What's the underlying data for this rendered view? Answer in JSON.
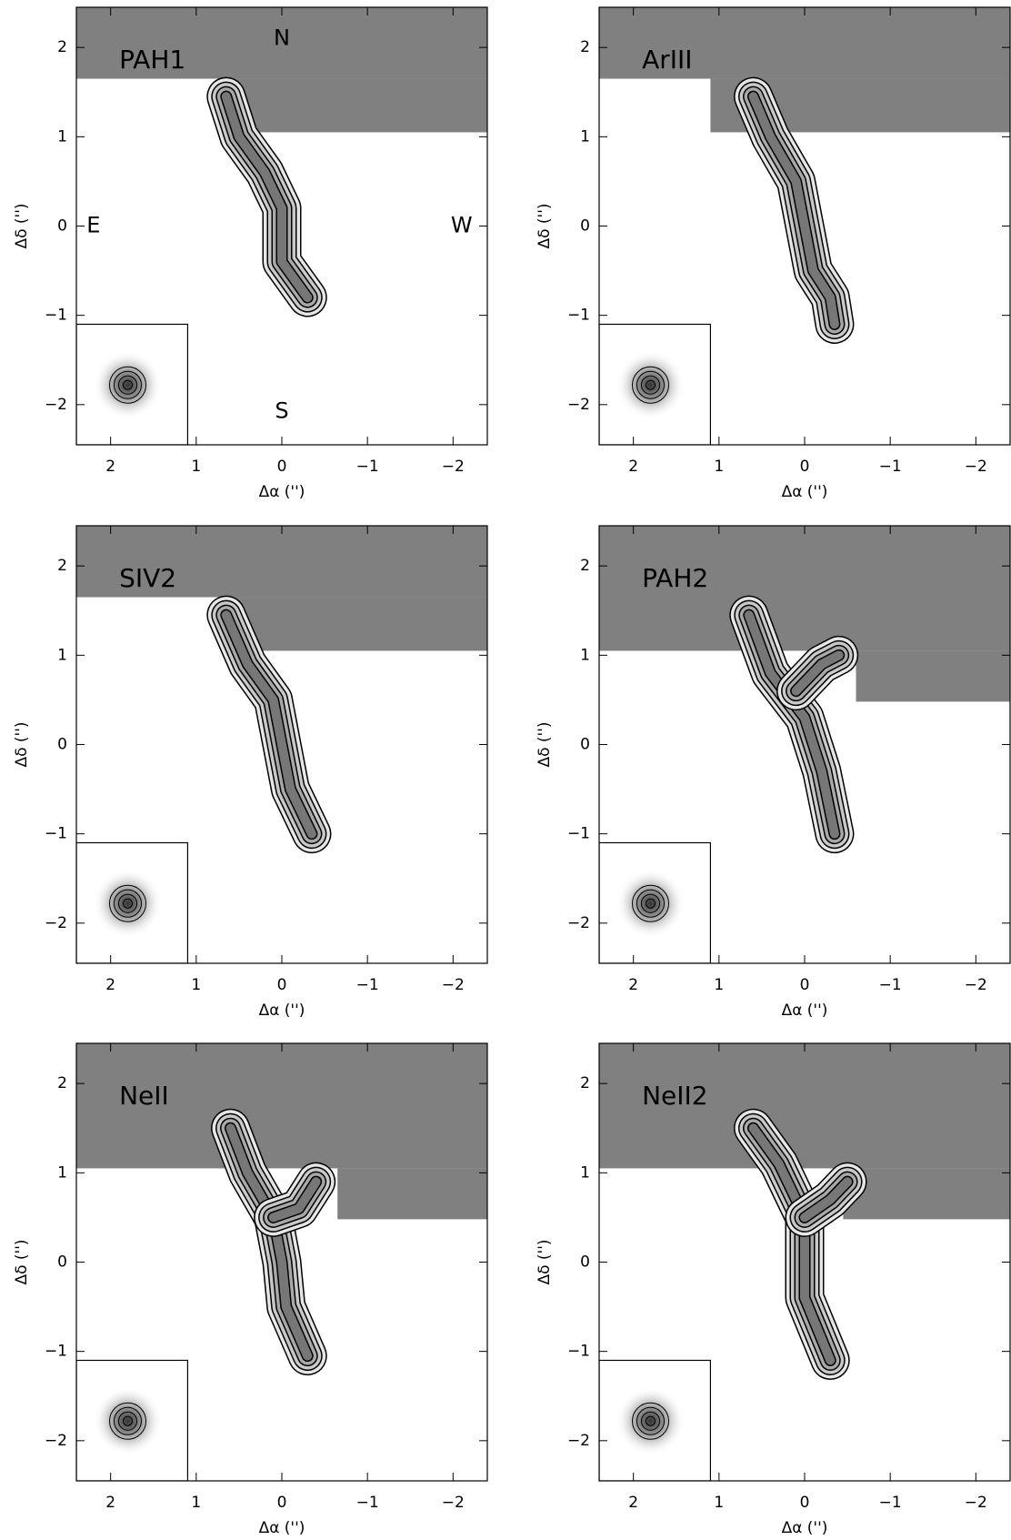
{
  "chart_data": [
    {
      "type": "image",
      "title": "PAH1",
      "xlabel": "Δα ('')",
      "ylabel": "Δδ ('')",
      "annotations": [
        "N",
        "S",
        "E",
        "W"
      ],
      "xlim": [
        2.4,
        -2.4
      ],
      "ylim": [
        -2.45,
        2.45
      ],
      "xticks": [
        2,
        1,
        0,
        {
          "value": -1,
          "label": "−1"
        },
        {
          "value": -2,
          "label": "−2"
        }
      ],
      "yticks": [
        {
          "value": -2,
          "label": "−2"
        },
        {
          "value": -1,
          "label": "−1"
        },
        0,
        1,
        2
      ]
    },
    {
      "type": "image",
      "title": "ArIII",
      "xlabel": "Δα ('')",
      "ylabel": "Δδ ('')",
      "xlim": [
        2.4,
        -2.4
      ],
      "ylim": [
        -2.45,
        2.45
      ],
      "xticks": [
        2,
        1,
        0,
        {
          "value": -1,
          "label": "−1"
        },
        {
          "value": -2,
          "label": "−2"
        }
      ],
      "yticks": [
        {
          "value": -2,
          "label": "−2"
        },
        {
          "value": -1,
          "label": "−1"
        },
        0,
        1,
        2
      ]
    },
    {
      "type": "image",
      "title": "SIV2",
      "xlabel": "Δα ('')",
      "ylabel": "Δδ ('')",
      "xlim": [
        2.4,
        -2.4
      ],
      "ylim": [
        -2.45,
        2.45
      ],
      "xticks": [
        2,
        1,
        0,
        {
          "value": -1,
          "label": "−1"
        },
        {
          "value": -2,
          "label": "−2"
        }
      ],
      "yticks": [
        {
          "value": -2,
          "label": "−2"
        },
        {
          "value": -1,
          "label": "−1"
        },
        0,
        1,
        2
      ]
    },
    {
      "type": "image",
      "title": "PAH2",
      "xlabel": "Δα ('')",
      "ylabel": "Δδ ('')",
      "xlim": [
        2.4,
        -2.4
      ],
      "ylim": [
        -2.45,
        2.45
      ],
      "xticks": [
        2,
        1,
        0,
        {
          "value": -1,
          "label": "−1"
        },
        {
          "value": -2,
          "label": "−2"
        }
      ],
      "yticks": [
        {
          "value": -2,
          "label": "−2"
        },
        {
          "value": -1,
          "label": "−1"
        },
        0,
        1,
        2
      ]
    },
    {
      "type": "image",
      "title": "NeII",
      "xlabel": "Δα ('')",
      "ylabel": "Δδ ('')",
      "xlim": [
        2.4,
        -2.4
      ],
      "ylim": [
        -2.45,
        2.45
      ],
      "xticks": [
        2,
        1,
        0,
        {
          "value": -1,
          "label": "−1"
        },
        {
          "value": -2,
          "label": "−2"
        }
      ],
      "yticks": [
        {
          "value": -2,
          "label": "−2"
        },
        {
          "value": -1,
          "label": "−1"
        },
        0,
        1,
        2
      ]
    },
    {
      "type": "image",
      "title": "NeII2",
      "xlabel": "Δα ('')",
      "ylabel": "Δδ ('')",
      "xlim": [
        2.4,
        -2.4
      ],
      "ylim": [
        -2.45,
        2.45
      ],
      "xticks": [
        2,
        1,
        0,
        {
          "value": -1,
          "label": "−1"
        },
        {
          "value": -2,
          "label": "−2"
        }
      ],
      "yticks": [
        {
          "value": -2,
          "label": "−2"
        },
        {
          "value": -1,
          "label": "−1"
        },
        0,
        1,
        2
      ]
    }
  ]
}
